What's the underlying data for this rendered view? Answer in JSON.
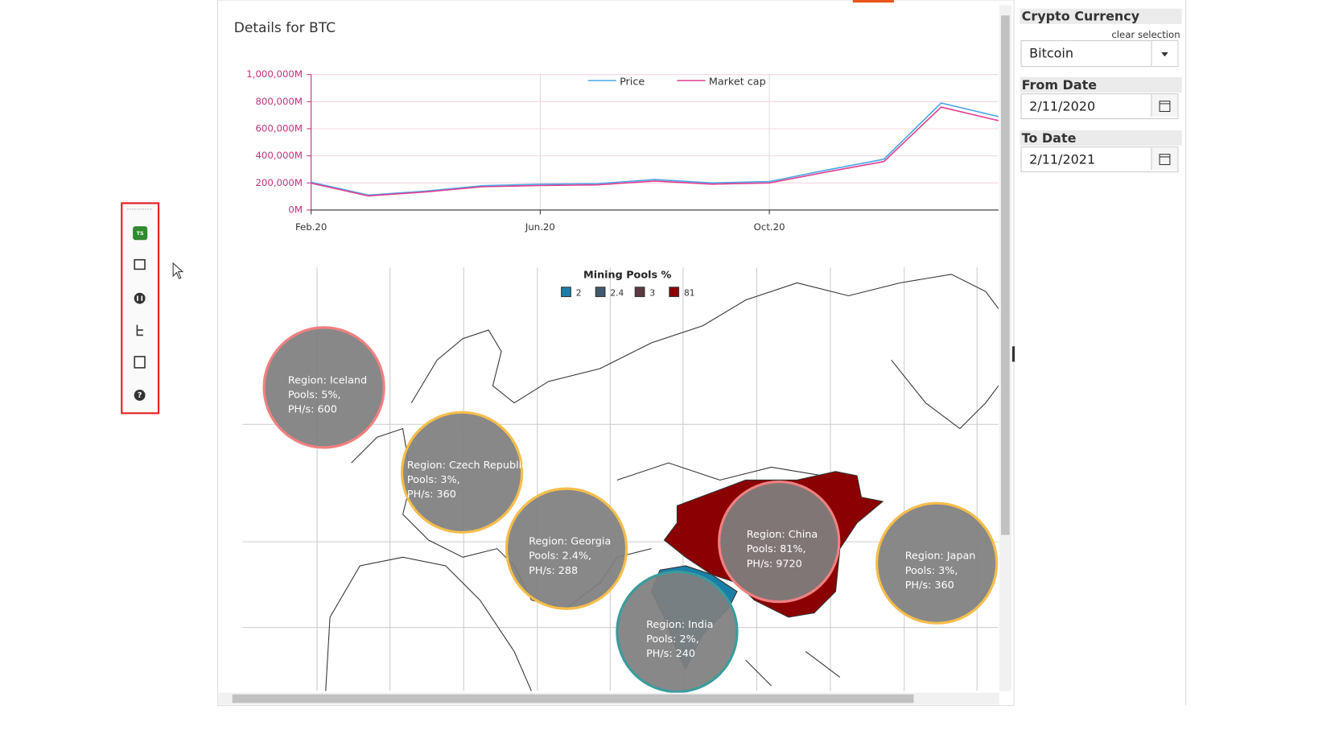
{
  "chart_data": [
    {
      "type": "line",
      "title": "Details for BTC",
      "categories": [
        "Feb.20",
        null,
        null,
        null,
        "Jun.20",
        null,
        null,
        null,
        "Oct.20",
        null,
        null,
        null,
        null
      ],
      "series": [
        {
          "name": "Price",
          "color": "#4da6e8",
          "values": [
            205000,
            110000,
            140000,
            180000,
            190000,
            195000,
            225000,
            200000,
            210000,
            295000,
            375000,
            790000,
            690000
          ]
        },
        {
          "name": "Market cap",
          "color": "#e0408f",
          "values": [
            198000,
            104000,
            134000,
            172000,
            181000,
            186000,
            214000,
            191000,
            200000,
            281000,
            358000,
            760000,
            660000
          ]
        }
      ],
      "ylim": [
        0,
        1000000
      ],
      "yticks": [
        {
          "value": 0,
          "label": "0M"
        },
        {
          "value": 200000,
          "label": "200,000M"
        },
        {
          "value": 400000,
          "label": "400,000M"
        },
        {
          "value": 600000,
          "label": "600,000M"
        },
        {
          "value": 800000,
          "label": "800,000M"
        },
        {
          "value": 1000000,
          "label": "1,000,000M"
        }
      ],
      "grid": true
    },
    {
      "type": "bubble-map",
      "legend_title": "Mining Pools %",
      "legend": [
        {
          "value": 2,
          "color": "#1a7fa8"
        },
        {
          "value": 2.4,
          "color": "#3f5a6e"
        },
        {
          "value": 3,
          "color": "#5a3a40"
        },
        {
          "value": 81,
          "color": "#8b0000"
        }
      ],
      "bubbles": [
        {
          "lines": [
            "Region: Iceland",
            "Pools: 5%,",
            "PH/s: 600"
          ],
          "border": "#f08080"
        },
        {
          "lines": [
            "Region: Czech Republic",
            "Pools: 3%,",
            "PH/s: 360"
          ],
          "border": "#f5bd4a"
        },
        {
          "lines": [
            "Region: Georgia",
            "Pools: 2.4%,",
            "PH/s: 288"
          ],
          "border": "#f5bd4a"
        },
        {
          "lines": [
            "Region: China",
            "Pools: 81%,",
            "PH/s: 9720"
          ],
          "border": "#f08080"
        },
        {
          "lines": [
            "Region: Japan",
            "Pools: 3%,",
            "PH/s: 360"
          ],
          "border": "#f5bd4a"
        },
        {
          "lines": [
            "Region: India",
            "Pools: 2%,",
            "PH/s: 240"
          ],
          "border": "#3a9c9c"
        }
      ]
    }
  ],
  "toolbar": {
    "badge": "TS"
  },
  "sidebar": {
    "currency_title": "Crypto Currency",
    "clear": "clear selection",
    "currency": "Bitcoin",
    "from_title": "From Date",
    "from": "2/11/2020",
    "to_title": "To Date",
    "to": "2/11/2021"
  }
}
